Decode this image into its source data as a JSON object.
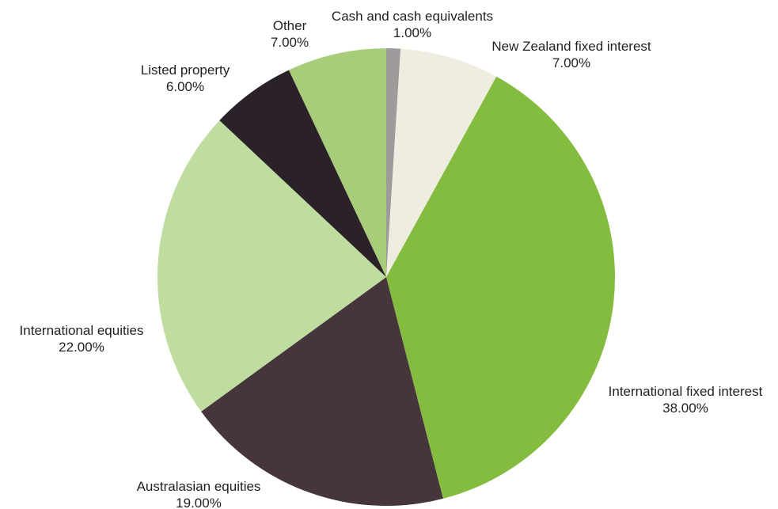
{
  "chart_data": {
    "type": "pie",
    "title": "",
    "slices": [
      {
        "label": "Cash and cash equivalents",
        "value": 1.0,
        "display": "1.00%",
        "color": "#9e9b9a"
      },
      {
        "label": "New Zealand fixed interest",
        "value": 7.0,
        "display": "7.00%",
        "color": "#eeede0"
      },
      {
        "label": "International fixed interest",
        "value": 38.0,
        "display": "38.00%",
        "color": "#84bc3f"
      },
      {
        "label": "Australasian equities",
        "value": 19.0,
        "display": "19.00%",
        "color": "#46363c"
      },
      {
        "label": "International equities",
        "value": 22.0,
        "display": "22.00%",
        "color": "#bedd9f"
      },
      {
        "label": "Listed property",
        "value": 6.0,
        "display": "6.00%",
        "color": "#2b2129"
      },
      {
        "label": "Other",
        "value": 7.0,
        "display": "7.00%",
        "color": "#a7cc7a"
      }
    ]
  }
}
